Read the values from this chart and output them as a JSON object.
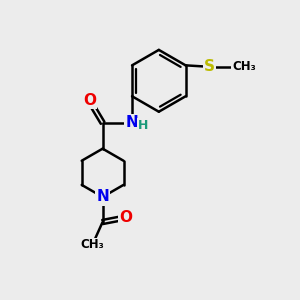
{
  "background_color": "#ececec",
  "bond_color": "#000000",
  "bond_width": 1.8,
  "colors": {
    "N": "#0000ee",
    "O": "#ee0000",
    "S": "#bbbb00",
    "C": "#000000",
    "H": "#1a9a7a"
  },
  "scale": 1.0
}
